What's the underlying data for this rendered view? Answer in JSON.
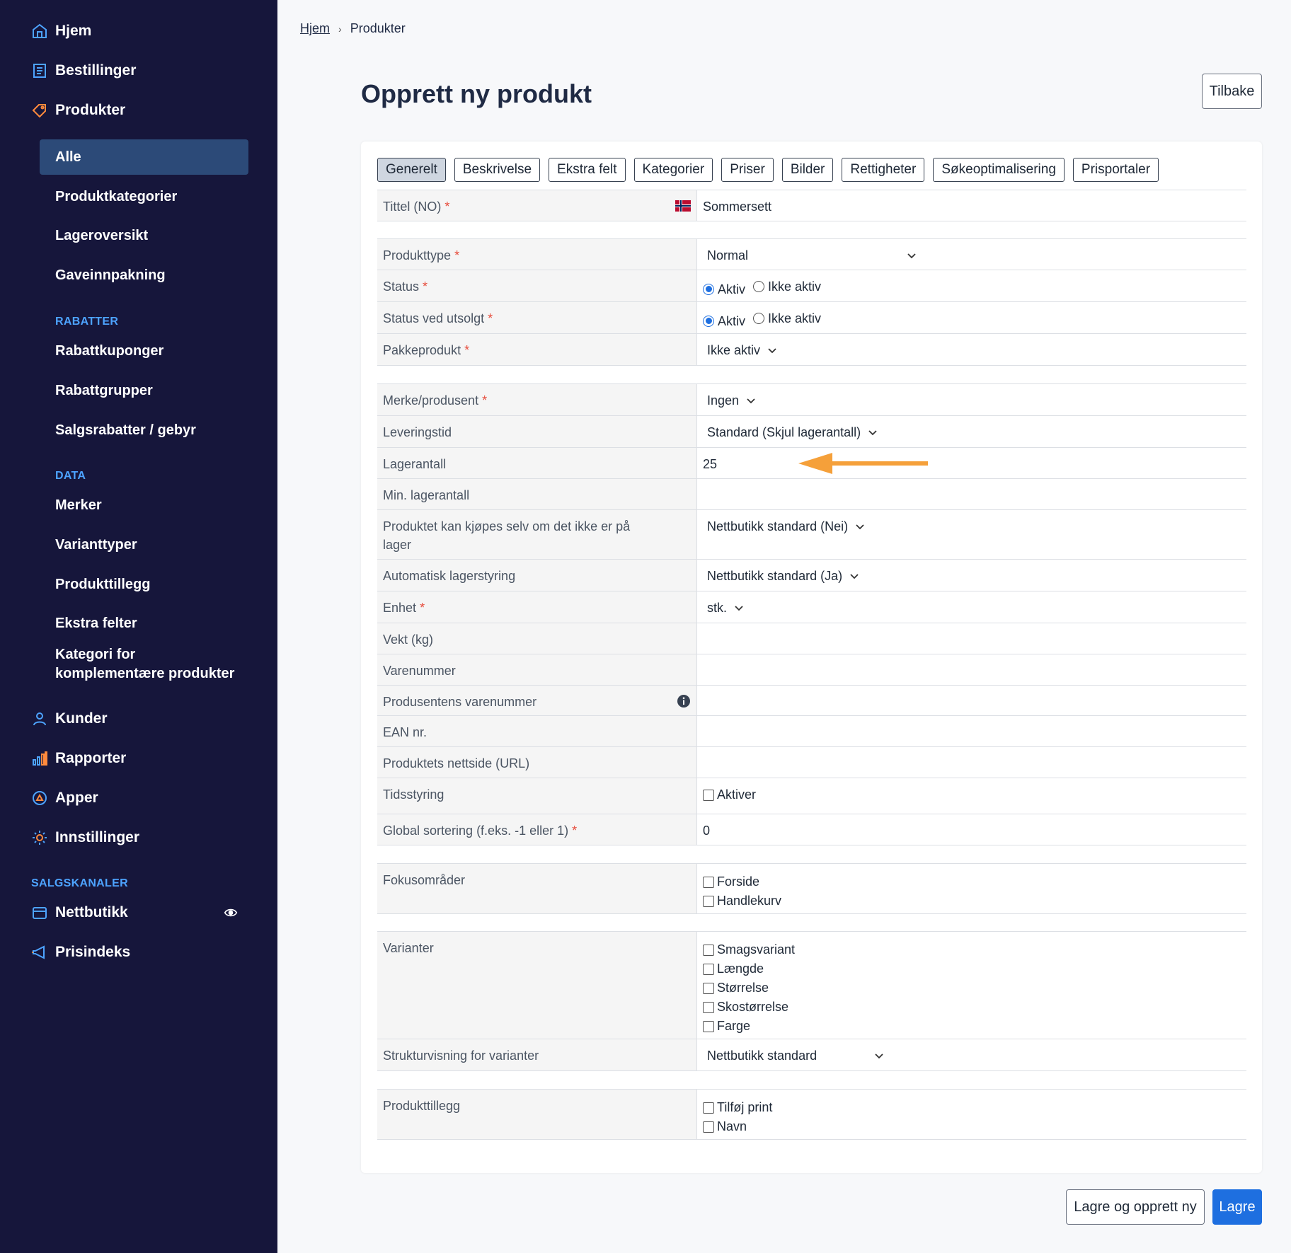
{
  "sidebar": {
    "nav_top": [
      {
        "label": "Hjem",
        "icon": "home-icon"
      },
      {
        "label": "Bestillinger",
        "icon": "orders-icon"
      },
      {
        "label": "Produkter",
        "icon": "tag-icon"
      }
    ],
    "products_sub": [
      "Alle",
      "Produktkategorier",
      "Lageroversikt",
      "Gaveinnpakning"
    ],
    "section_rabatter": "RABATTER",
    "rabatter_items": [
      "Rabattkuponger",
      "Rabattgrupper",
      "Salgsrabatter / gebyr"
    ],
    "section_data": "DATA",
    "data_items": [
      "Merker",
      "Varianttyper",
      "Produkttillegg",
      "Ekstra felter"
    ],
    "data_item_multiline": [
      "Kategori for",
      "komplementære produkter"
    ],
    "nav_bottom": [
      {
        "label": "Kunder",
        "icon": "user-icon"
      },
      {
        "label": "Rapporter",
        "icon": "bar-chart-icon"
      },
      {
        "label": "Apper",
        "icon": "apps-icon"
      },
      {
        "label": "Innstillinger",
        "icon": "gear-icon"
      }
    ],
    "section_salgskanaler": "SALGSKANALER",
    "channels": [
      {
        "label": "Nettbutikk",
        "icon": "store-icon"
      },
      {
        "label": "Prisindeks",
        "icon": "megaphone-icon"
      }
    ],
    "accent_color": "#4da3ff"
  },
  "breadcrumb": {
    "home": "Hjem",
    "current": "Produkter"
  },
  "page_title": "Opprett ny produkt",
  "back_button": "Tilbake",
  "tabs": [
    "Generelt",
    "Beskrivelse",
    "Ekstra felt",
    "Kategorier",
    "Priser",
    "Bilder",
    "Rettigheter",
    "Søkeoptimalisering",
    "Prisportaler"
  ],
  "form": {
    "title_label": "Tittel (NO)",
    "title_value": "Sommersett",
    "product_type_label": "Produkttype",
    "product_type_value": "Normal",
    "status_label": "Status",
    "status_soldout_label": "Status ved utsolgt",
    "radio_active": "Aktiv",
    "radio_inactive": "Ikke aktiv",
    "package_label": "Pakkeprodukt",
    "package_value": "Ikke aktiv",
    "brand_label": "Merke/produsent",
    "brand_value": "Ingen",
    "delivery_label": "Leveringstid",
    "delivery_value": "Standard (Skjul lagerantall)",
    "stock_label": "Lagerantall",
    "stock_value": "25",
    "min_stock_label": "Min. lagerantall",
    "buy_oos_label": "Produktet kan kjøpes selv om det ikke er på lager",
    "buy_oos_value": "Nettbutikk standard (Nei)",
    "auto_stock_label": "Automatisk lagerstyring",
    "auto_stock_value": "Nettbutikk standard (Ja)",
    "unit_label": "Enhet",
    "unit_value": "stk.",
    "weight_label": "Vekt (kg)",
    "sku_label": "Varenummer",
    "mfr_sku_label": "Produsentens varenummer",
    "ean_label": "EAN nr.",
    "url_label": "Produktets nettside (URL)",
    "timing_label": "Tidsstyring",
    "timing_option": "Aktiver",
    "sort_label": "Global sortering (f.eks. -1 eller 1)",
    "sort_value": "0",
    "focus_label": "Fokusområder",
    "focus_options": [
      "Forside",
      "Handlekurv"
    ],
    "variants_label": "Varianter",
    "variant_options": [
      "Smagsvariant",
      "Længde",
      "Størrelse",
      "Skostørrelse",
      "Farge"
    ],
    "structure_label": "Strukturvisning for varianter",
    "structure_value": "Nettbutikk standard",
    "addons_label": "Produkttillegg",
    "addon_options": [
      "Tilføj print",
      "Navn"
    ],
    "required_marker": "*"
  },
  "footer": {
    "save_new": "Lagre og opprett ny",
    "save": "Lagre"
  },
  "colors": {
    "primary": "#1e6fe0",
    "sidebar_bg": "#16163b",
    "arrow": "#f5a03a",
    "required": "#e74c3c"
  }
}
